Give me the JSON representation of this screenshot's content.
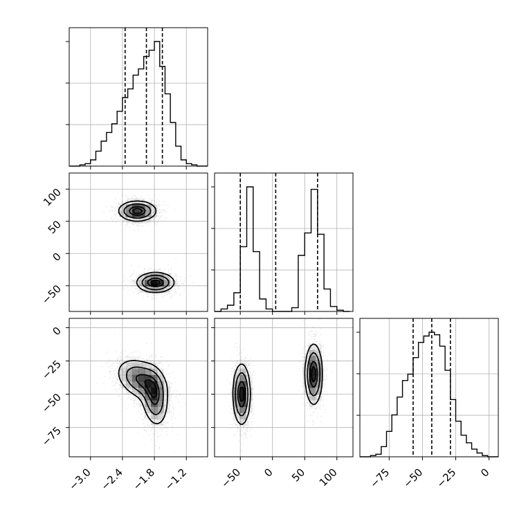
{
  "chart_data": {
    "type": "corner",
    "grid": true,
    "parameters": [
      {
        "label": "",
        "range": [
          -3.4,
          -0.8
        ],
        "quantiles": [
          -2.35,
          -1.95,
          -1.65
        ],
        "ticks": [
          -3.0,
          -2.4,
          -1.8,
          -1.2
        ],
        "tick_labels": [
          "−3.0",
          "−2.4",
          "−1.8",
          "−1.2"
        ]
      },
      {
        "label": "",
        "range": [
          -90,
          125
        ],
        "quantiles": [
          -50,
          5,
          70
        ],
        "ticks": [
          -50,
          0,
          50,
          100
        ],
        "tick_labels": [
          "−50",
          "0",
          "50",
          "100"
        ]
      },
      {
        "label": "",
        "range": [
          -97,
          7
        ],
        "quantiles": [
          -57,
          -43,
          -29
        ],
        "ticks": [
          -75,
          -50,
          -25,
          0
        ],
        "tick_labels": [
          "−75",
          "−50",
          "−25",
          "0"
        ]
      }
    ],
    "histograms": [
      {
        "param": 0,
        "bin_edges": [
          -3.4,
          -3.3,
          -3.2,
          -3.1,
          -3.0,
          -2.9,
          -2.8,
          -2.7,
          -2.6,
          -2.5,
          -2.4,
          -2.3,
          -2.2,
          -2.1,
          -2.0,
          -1.9,
          -1.8,
          -1.7,
          -1.6,
          -1.5,
          -1.4,
          -1.3,
          -1.2,
          -1.1,
          -1.0,
          -0.9,
          -0.8
        ],
        "counts": [
          0,
          0,
          1,
          2,
          5,
          12,
          20,
          27,
          34,
          44,
          55,
          62,
          73,
          78,
          88,
          93,
          100,
          80,
          58,
          35,
          16,
          5,
          2,
          1,
          0,
          0
        ]
      },
      {
        "param": 1,
        "bin_edges": [
          -90,
          -80,
          -70,
          -60,
          -50,
          -40,
          -30,
          -20,
          -10,
          0,
          10,
          20,
          30,
          40,
          50,
          60,
          70,
          80,
          90,
          100,
          110,
          120
        ],
        "counts": [
          0,
          2,
          5,
          15,
          52,
          100,
          48,
          10,
          2,
          0,
          0,
          0,
          3,
          45,
          63,
          98,
          62,
          18,
          4,
          1,
          0
        ]
      },
      {
        "param": 2,
        "bin_edges": [
          -97,
          -93,
          -89,
          -85,
          -81,
          -77,
          -73,
          -69,
          -65,
          -61,
          -57,
          -53,
          -49,
          -45,
          -41,
          -37,
          -33,
          -29,
          -25,
          -21,
          -17,
          -13,
          -9,
          -5,
          -1,
          3,
          7
        ],
        "counts": [
          0,
          0,
          1,
          2,
          8,
          20,
          33,
          47,
          60,
          65,
          78,
          90,
          95,
          98,
          96,
          87,
          68,
          45,
          28,
          17,
          11,
          6,
          3,
          1,
          0,
          0
        ]
      }
    ],
    "joint_2d": [
      {
        "x_param": 0,
        "y_param": 1,
        "modes": [
          {
            "center": [
              -2.12,
              66
            ],
            "sd": [
              0.17,
              7.5
            ],
            "rho": 0.0,
            "weight": 0.5
          },
          {
            "center": [
              -1.78,
              -45
            ],
            "sd": [
              0.17,
              7.5
            ],
            "rho": 0.0,
            "weight": 0.5
          }
        ]
      },
      {
        "x_param": 0,
        "y_param": 2,
        "modes": [
          {
            "center": [
              -2.05,
              -39
            ],
            "sd": [
              0.22,
              7.5
            ],
            "rho": -0.35,
            "weight": 0.55
          },
          {
            "center": [
              -1.8,
              -52
            ],
            "sd": [
              0.12,
              10.5
            ],
            "rho": -0.2,
            "weight": 0.45
          }
        ]
      },
      {
        "x_param": 1,
        "y_param": 2,
        "modes": [
          {
            "center": [
              -48,
              -50
            ],
            "sd": [
              6.5,
              11.0
            ],
            "rho": 0.0,
            "weight": 0.5
          },
          {
            "center": [
              64,
              -35
            ],
            "sd": [
              6.5,
              11.0
            ],
            "rho": 0.0,
            "weight": 0.5
          }
        ]
      }
    ],
    "contour_levels": [
      0.34,
      0.68,
      0.87
    ],
    "colors": {
      "line": "#000000",
      "grid": "#b0b0b0",
      "points": "#000000",
      "background": "#ffffff"
    }
  }
}
